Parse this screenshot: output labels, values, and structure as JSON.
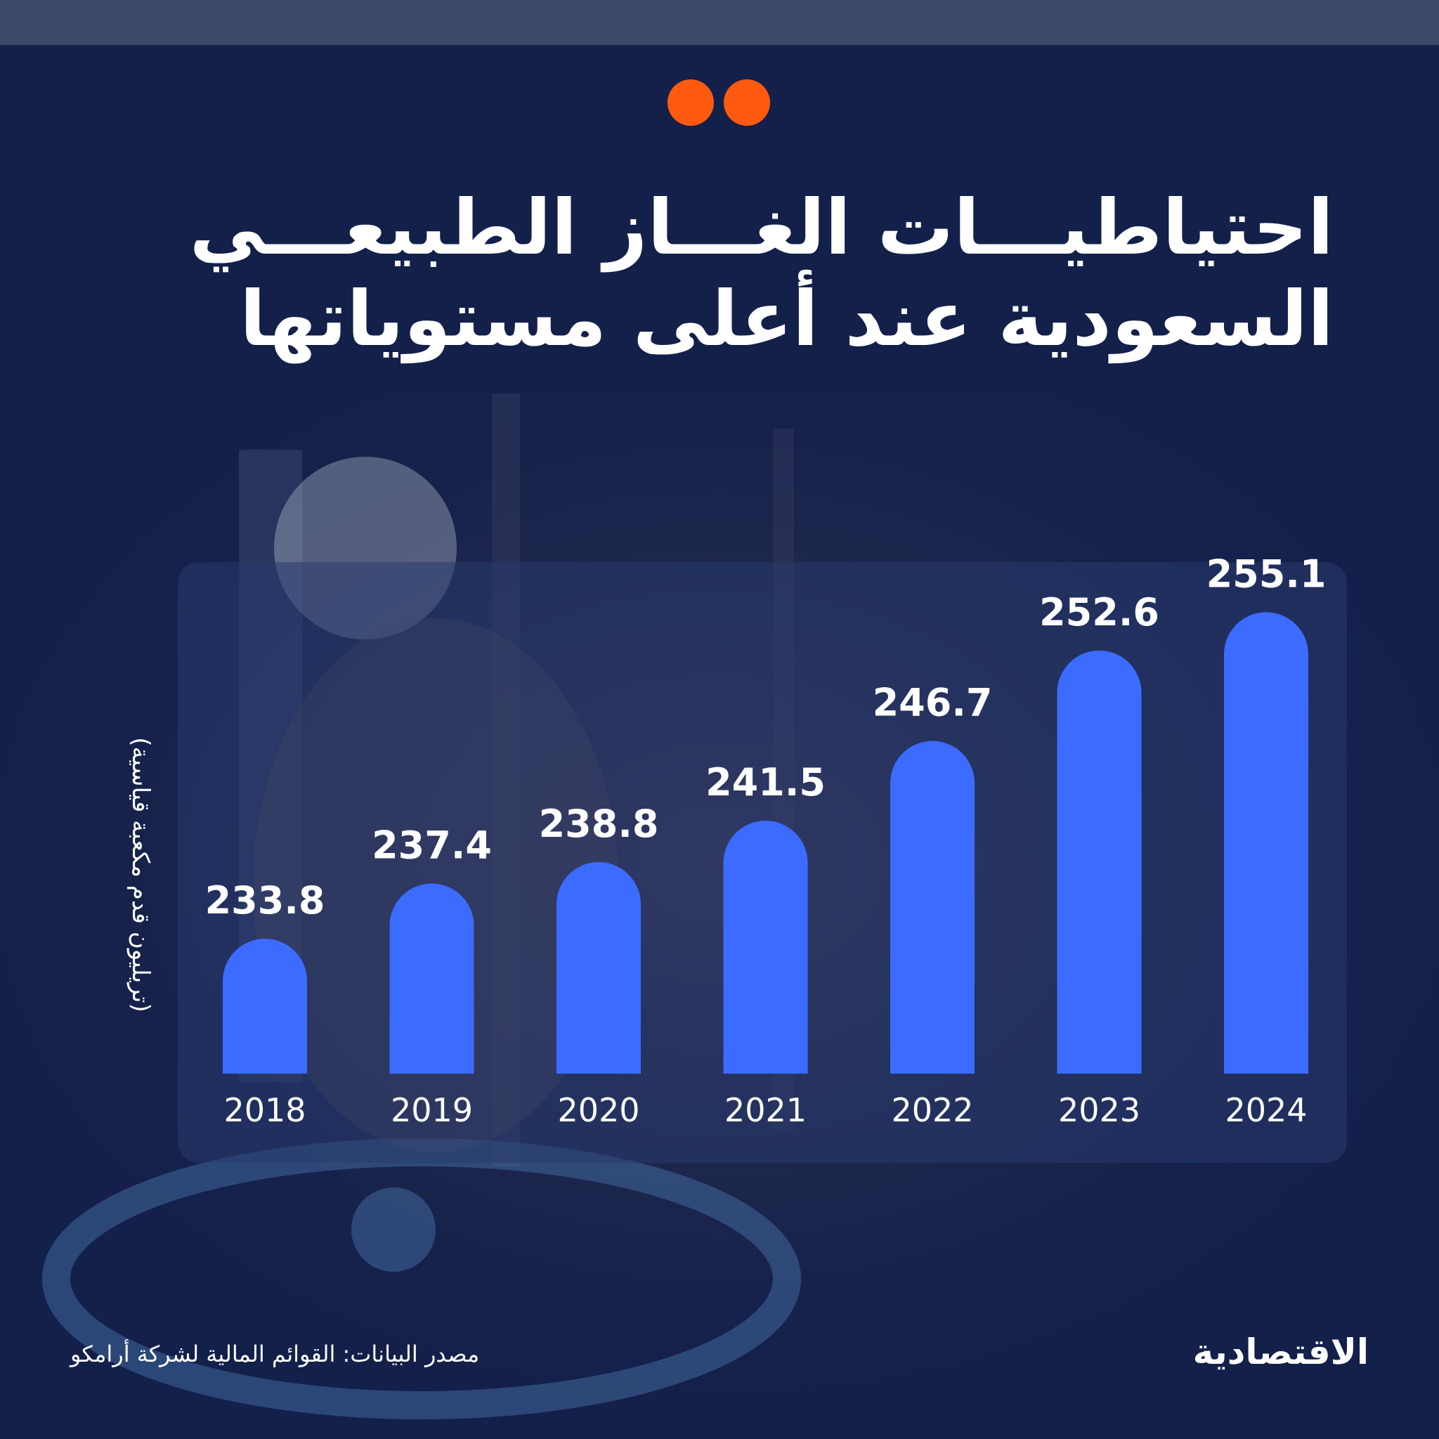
{
  "header": {
    "title_line1": "احتياطيـــات الغـــاز الطبيعـــي",
    "title_line2": "السعودية عند أعلى مستوياتها"
  },
  "colors": {
    "background": "#13204a",
    "top_bar": "#3b4a6b",
    "accent_dots": "#ff5a0f",
    "bar": "#3b6cff",
    "text": "#ffffff"
  },
  "chart_data": {
    "type": "bar",
    "categories": [
      "2018",
      "2019",
      "2020",
      "2021",
      "2022",
      "2023",
      "2024"
    ],
    "values": [
      233.8,
      237.4,
      238.8,
      241.5,
      246.7,
      252.6,
      255.1
    ],
    "ylabel": "(تريليون قدم مكعبة قياسية)",
    "ylim": [
      225,
      258
    ],
    "grid": false,
    "legend": "none"
  },
  "footer": {
    "source": "مصدر البيانات: القوائم المالية لشركة أرامكو",
    "logo_text": "الاقتصادية"
  }
}
